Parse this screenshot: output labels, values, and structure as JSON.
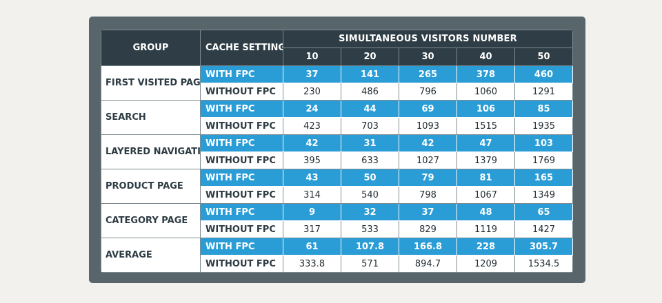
{
  "headers": {
    "group": "GROUP",
    "cache_settings": "CACHE SETTINGS",
    "visitors": "SIMULTANEOUS VISITORS NUMBER",
    "counts": [
      "10",
      "20",
      "30",
      "40",
      "50"
    ]
  },
  "setting_labels": {
    "with": "WITH FPC",
    "without": "WITHOUT FPC"
  },
  "groups": [
    {
      "name": "FIRST VISITED PAGE",
      "with": [
        "37",
        "141",
        "265",
        "378",
        "460"
      ],
      "without": [
        "230",
        "486",
        "796",
        "1060",
        "1291"
      ]
    },
    {
      "name": "SEARCH",
      "with": [
        "24",
        "44",
        "69",
        "106",
        "85"
      ],
      "without": [
        "423",
        "703",
        "1093",
        "1515",
        "1935"
      ]
    },
    {
      "name": "LAYERED NAVIGATION",
      "with": [
        "42",
        "31",
        "42",
        "47",
        "103"
      ],
      "without": [
        "395",
        "633",
        "1027",
        "1379",
        "1769"
      ]
    },
    {
      "name": "PRODUCT PAGE",
      "with": [
        "43",
        "50",
        "79",
        "81",
        "165"
      ],
      "without": [
        "314",
        "540",
        "798",
        "1067",
        "1349"
      ]
    },
    {
      "name": "CATEGORY PAGE",
      "with": [
        "9",
        "32",
        "37",
        "48",
        "65"
      ],
      "without": [
        "317",
        "533",
        "829",
        "1119",
        "1427"
      ]
    },
    {
      "name": "AVERAGE",
      "with": [
        "61",
        "107.8",
        "166.8",
        "228",
        "305.7"
      ],
      "without": [
        "333.8",
        "571",
        "894.7",
        "1209",
        "1534.5"
      ]
    }
  ],
  "colors": {
    "header_bg": "#2f3e46",
    "fpc_bg": "#2a9cd6",
    "frame_bg": "#58656b",
    "page_bg": "#f3f1ee"
  }
}
